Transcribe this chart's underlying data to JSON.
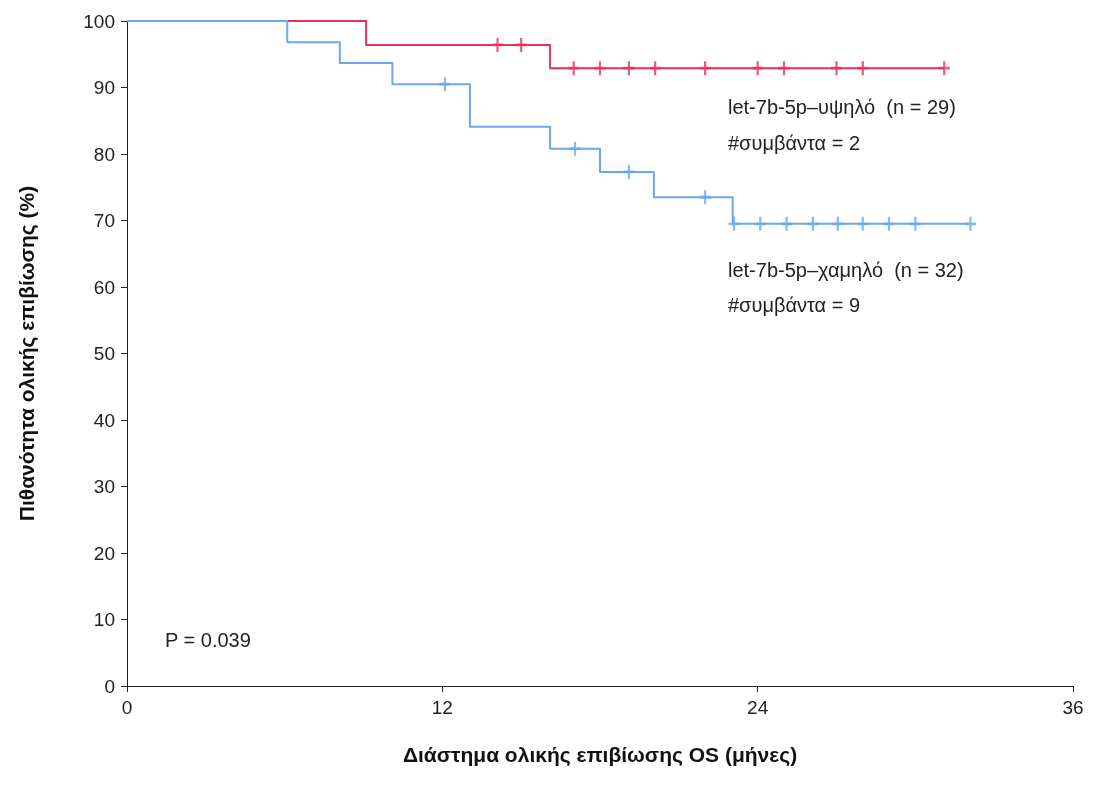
{
  "chart_data": {
    "type": "step",
    "xlabel": "Διάστημα ολικής επιβίωσης OS (μήνες)",
    "ylabel": "Πιθανότητα ολικής επιβίωσης (%)",
    "xlim": [
      0,
      36
    ],
    "xticks": [
      0,
      12,
      24,
      36
    ],
    "ylim": [
      0,
      100
    ],
    "yticks": [
      0,
      10,
      20,
      30,
      40,
      50,
      60,
      70,
      80,
      90,
      100
    ],
    "grid": false,
    "series": [
      {
        "color": "#e8325a",
        "x": [
          0,
          9.1,
          16.1,
          31.1
        ],
        "values": [
          100,
          96.4,
          92.9,
          92.9
        ]
      },
      {
        "color": "#6aa8ec",
        "x": [
          0,
          6.1,
          8.1,
          10.1,
          13.05,
          16.1,
          18.0,
          20.05,
          23.05,
          32.1
        ],
        "values": [
          100,
          96.8,
          93.7,
          90.5,
          84.1,
          80.8,
          77.3,
          73.5,
          69.5,
          69.5
        ]
      },
      {
        "type": "scatter",
        "marker": "cross",
        "color": "#e8325a",
        "x": [
          14.1,
          15.0,
          17.0,
          18.0,
          19.1,
          20.1,
          22.0,
          24.0,
          25.0,
          27.0,
          28.0,
          31.1
        ],
        "values": [
          96.4,
          96.4,
          92.9,
          92.9,
          92.9,
          92.9,
          92.9,
          92.9,
          92.9,
          92.9,
          92.9,
          92.9
        ]
      },
      {
        "type": "scatter",
        "marker": "cross",
        "color": "#6aa8ec",
        "x": [
          12.1,
          17.05,
          19.1,
          22.0,
          23.1,
          24.1,
          25.1,
          26.1,
          27.05,
          28.0,
          29.0,
          30.0,
          32.1
        ],
        "values": [
          90.5,
          80.8,
          77.3,
          73.5,
          69.5,
          69.5,
          69.5,
          69.5,
          69.5,
          69.5,
          69.5,
          69.5,
          69.5
        ]
      }
    ],
    "annotations": [
      "let-7b-5p–υψηλό  (n = 29)",
      "#συμβάντα = 2",
      "let-7b-5p–χαμηλό  (n = 32)",
      "#συμβάντα = 9",
      "P = 0.039"
    ]
  }
}
